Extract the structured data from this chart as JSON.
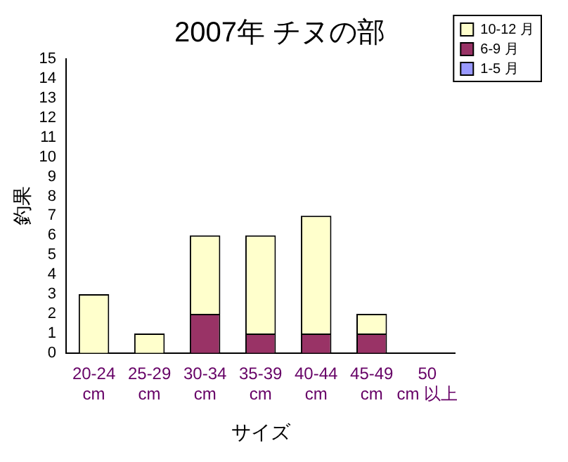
{
  "chart_data": {
    "type": "bar",
    "title": "2007年 チヌの部",
    "xlabel": "サイズ",
    "ylabel": "釣果",
    "categories": [
      "20-24 cm",
      "25-29 cm",
      "30-34 cm",
      "35-39 cm",
      "40-44 cm",
      "45-49 cm",
      "50 cm 以上"
    ],
    "series": [
      {
        "name": "1-5 月",
        "color": "#9999ff",
        "values": [
          0,
          0,
          0,
          0,
          0,
          0,
          0
        ]
      },
      {
        "name": "6-9 月",
        "color": "#993366",
        "values": [
          0,
          0,
          2,
          1,
          1,
          1,
          0
        ]
      },
      {
        "name": "10-12 月",
        "color": "#ffffcc",
        "values": [
          3,
          1,
          4,
          5,
          6,
          1,
          0
        ]
      }
    ],
    "stacked": true,
    "ylim": [
      0,
      15
    ],
    "yticks": [
      0,
      1,
      2,
      3,
      4,
      5,
      6,
      7,
      8,
      9,
      10,
      11,
      12,
      13,
      14,
      15
    ],
    "grid": false,
    "legend": "right"
  }
}
